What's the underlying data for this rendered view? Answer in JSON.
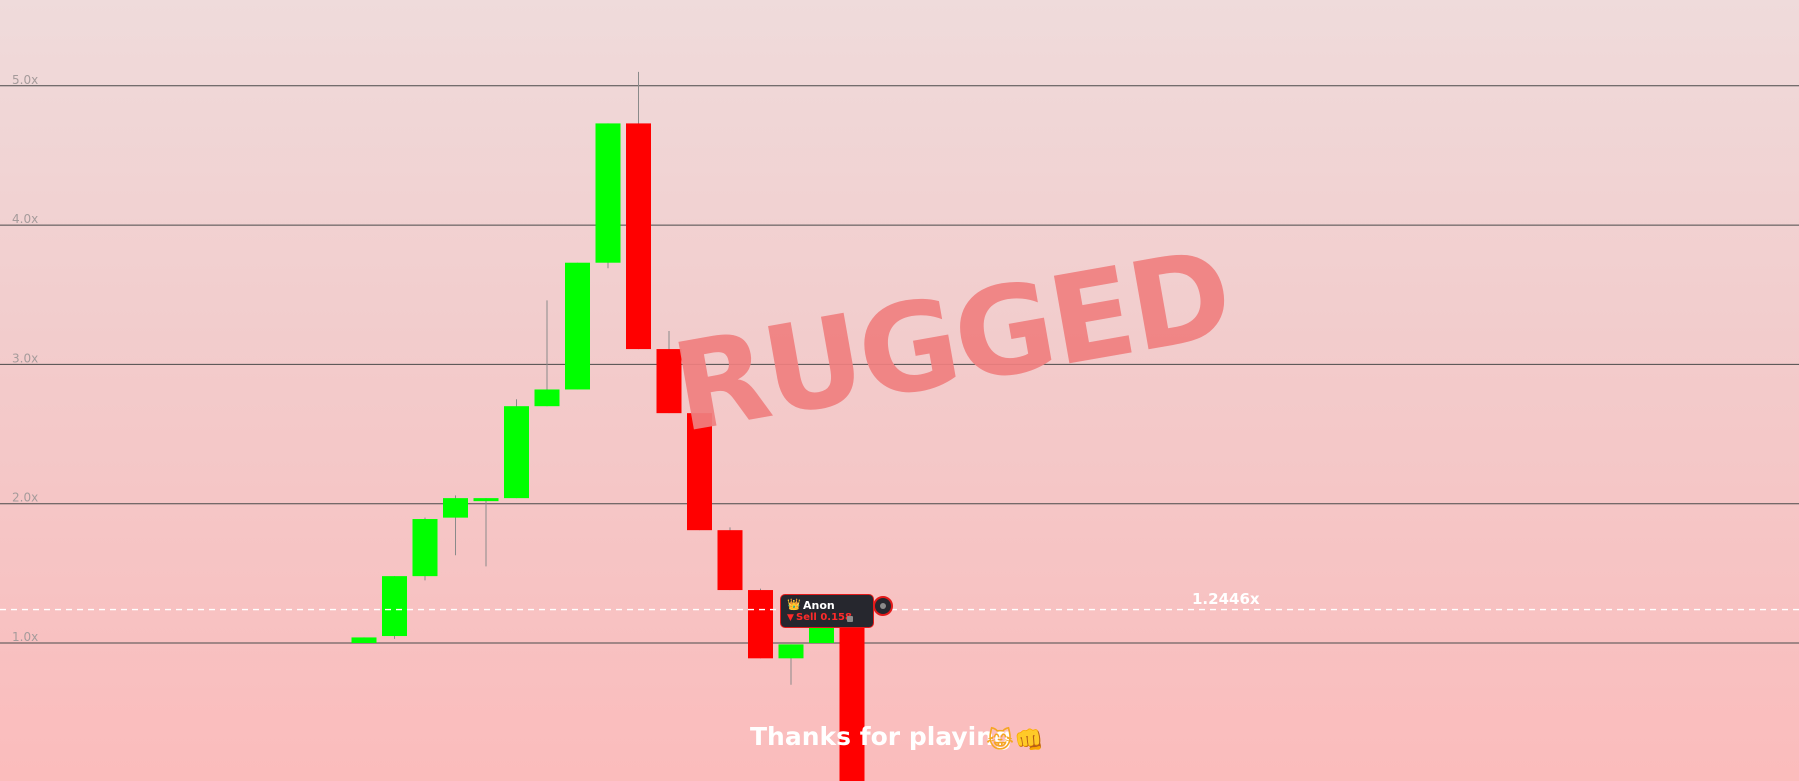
{
  "chart_data": {
    "type": "candlestick",
    "y_unit": "x",
    "ylim": [
      0.0,
      5.5
    ],
    "yticks": [
      "1.0x",
      "2.0x",
      "3.0x",
      "4.0x",
      "5.0x"
    ],
    "grid": true,
    "current_price_label": "1.2446x",
    "current_price": 1.24,
    "candles": [
      {
        "open": 1.0,
        "close": 1.04,
        "high": 1.04,
        "low": 1.0
      },
      {
        "open": 1.05,
        "close": 1.48,
        "high": 1.48,
        "low": 1.03
      },
      {
        "open": 1.48,
        "close": 1.89,
        "high": 1.9,
        "low": 1.45
      },
      {
        "open": 1.9,
        "close": 2.04,
        "high": 2.06,
        "low": 1.63
      },
      {
        "open": 2.03,
        "close": 2.04,
        "high": 2.04,
        "low": 1.55
      },
      {
        "open": 2.04,
        "close": 2.7,
        "high": 2.75,
        "low": 2.04
      },
      {
        "open": 2.7,
        "close": 2.82,
        "high": 3.46,
        "low": 2.7
      },
      {
        "open": 2.82,
        "close": 3.73,
        "high": 3.73,
        "low": 2.82
      },
      {
        "open": 3.73,
        "close": 4.73,
        "high": 4.73,
        "low": 3.69
      },
      {
        "open": 4.73,
        "close": 3.11,
        "high": 5.1,
        "low": 3.11
      },
      {
        "open": 3.11,
        "close": 2.65,
        "high": 3.24,
        "low": 2.65
      },
      {
        "open": 2.65,
        "close": 1.81,
        "high": 2.65,
        "low": 1.81
      },
      {
        "open": 1.81,
        "close": 1.38,
        "high": 1.83,
        "low": 1.38
      },
      {
        "open": 1.38,
        "close": 0.89,
        "high": 1.39,
        "low": 0.89
      },
      {
        "open": 0.89,
        "close": 0.99,
        "high": 0.99,
        "low": 0.7
      },
      {
        "open": 1.0,
        "close": 1.14,
        "high": 1.14,
        "low": 1.0
      },
      {
        "open": 1.26,
        "close": 0.0,
        "high": 1.27,
        "low": 0.0
      }
    ]
  },
  "overlay": {
    "rugged_text": "RUGGED",
    "thanks_text": "Thanks for playing",
    "thanks_emojis": "😹👊"
  },
  "trade_marker": {
    "crown_icon": "👑",
    "username": "Anon",
    "sell_icon": "▼",
    "action_text": "Sell 0.158"
  },
  "colors": {
    "up": "#00ff00",
    "down": "#ff0000",
    "grid": "#4a4a4a",
    "price_line": "#ffffff",
    "rugged": "#f08080",
    "tag_bg": "#26272e"
  }
}
